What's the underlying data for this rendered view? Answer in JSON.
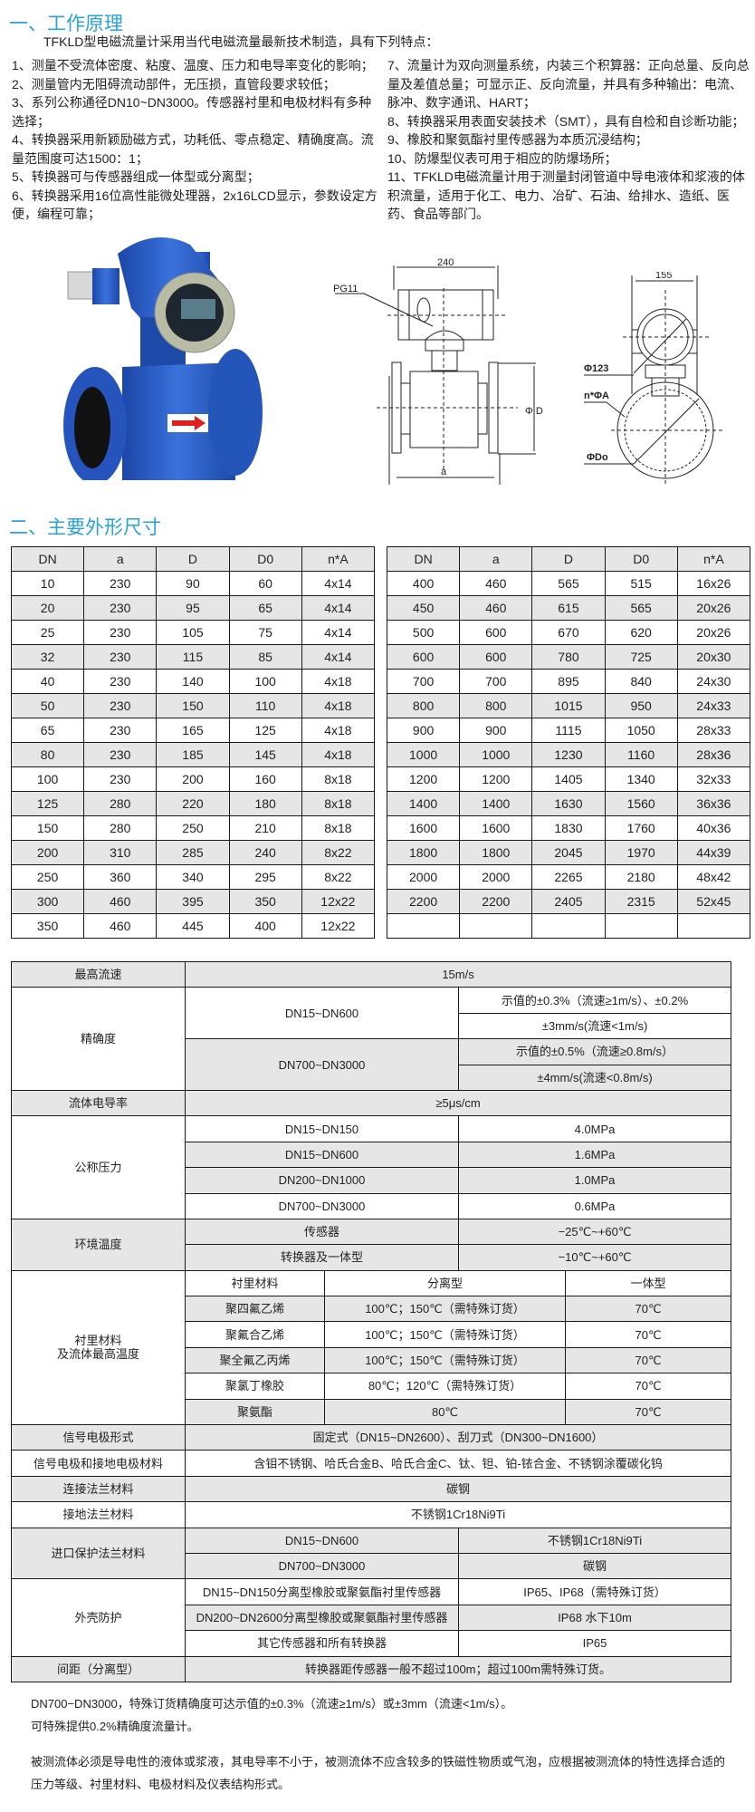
{
  "section1": {
    "title": "一、工作原理",
    "intro": "TFKLD型电磁流量计采用当代电磁流量最新技术制造，具有下列特点：",
    "left_items": [
      "1、测量不受流体密度、粘度、温度、压力和电导率变化的影响；",
      "2、测量管内无阻碍流动部件，无压损，直管段要求较低；",
      "3、系列公称通径DN10~DN3000。传感器衬里和电极材料有多种选择；",
      "4、转换器采用新颖励磁方式，功耗低、零点稳定、精确度高。流量范围度可达1500：1；",
      "5、转换器可与传感器组成一体型或分离型；",
      "6、转换器采用16位高性能微处理器，2x16LCD显示，参数设定方便，编程可靠；"
    ],
    "right_items": [
      "7、流量计为双向测量系统，内装三个积算器：正向总量、反向总量及差值总量；可显示正、反向流量，并具有多种输出：电流、脉冲、数字通讯、HART；",
      "8、转换器采用表面安装技术（SMT），具有自检和自诊断功能；",
      "9、橡胶和聚氨酯衬里传感器为本质沉浸结构；",
      "10、防爆型仪表可用于相应的防爆场所；",
      "11、TFKLD电磁流量计用于测量封闭管道中导电液体和浆液的体积流量，适用于化工、电力、冶矿、石油、给排水、造纸、医药、食品等部门。"
    ]
  },
  "drawing": {
    "dim_240": "240",
    "pg11": "PG11",
    "phi_d": "Φ D",
    "dim_a": "a",
    "dim_155": "155",
    "phi_123": "Φ123",
    "n_phi_a": "n*ΦA",
    "phi_do": "ΦDo",
    "body_color": "#2a5fc4",
    "arrow_color": "#e02020"
  },
  "section2": {
    "title": "二、主要外形尺寸",
    "headers": [
      "DN",
      "a",
      "D",
      "D0",
      "n*A"
    ],
    "left_rows": [
      [
        "10",
        "230",
        "90",
        "60",
        "4x14"
      ],
      [
        "20",
        "230",
        "95",
        "65",
        "4x14"
      ],
      [
        "25",
        "230",
        "105",
        "75",
        "4x14"
      ],
      [
        "32",
        "230",
        "115",
        "85",
        "4x14"
      ],
      [
        "40",
        "230",
        "140",
        "100",
        "4x18"
      ],
      [
        "50",
        "230",
        "150",
        "110",
        "4x18"
      ],
      [
        "65",
        "230",
        "165",
        "125",
        "4x18"
      ],
      [
        "80",
        "230",
        "185",
        "145",
        "4x18"
      ],
      [
        "100",
        "230",
        "200",
        "160",
        "8x18"
      ],
      [
        "125",
        "280",
        "220",
        "180",
        "8x18"
      ],
      [
        "150",
        "280",
        "250",
        "210",
        "8x18"
      ],
      [
        "200",
        "310",
        "285",
        "240",
        "8x22"
      ],
      [
        "250",
        "360",
        "340",
        "295",
        "8x22"
      ],
      [
        "300",
        "460",
        "395",
        "350",
        "12x22"
      ],
      [
        "350",
        "460",
        "445",
        "400",
        "12x22"
      ]
    ],
    "right_rows": [
      [
        "400",
        "460",
        "565",
        "515",
        "16x26"
      ],
      [
        "450",
        "460",
        "615",
        "565",
        "20x26"
      ],
      [
        "500",
        "600",
        "670",
        "620",
        "20x26"
      ],
      [
        "600",
        "600",
        "780",
        "725",
        "20x30"
      ],
      [
        "700",
        "700",
        "895",
        "840",
        "24x30"
      ],
      [
        "800",
        "800",
        "1015",
        "950",
        "24x33"
      ],
      [
        "900",
        "900",
        "1115",
        "1050",
        "28x33"
      ],
      [
        "1000",
        "1000",
        "1230",
        "1160",
        "28x36"
      ],
      [
        "1200",
        "1200",
        "1405",
        "1340",
        "32x33"
      ],
      [
        "1400",
        "1400",
        "1630",
        "1560",
        "36x36"
      ],
      [
        "1600",
        "1600",
        "1830",
        "1760",
        "40x36"
      ],
      [
        "1800",
        "1800",
        "2045",
        "1970",
        "44x39"
      ],
      [
        "2000",
        "2000",
        "2265",
        "2180",
        "48x42"
      ],
      [
        "2200",
        "2200",
        "2405",
        "2315",
        "52x45"
      ],
      [
        "",
        "",
        "",
        "",
        ""
      ]
    ]
  },
  "spec_table": {
    "rows": [
      [
        {
          "t": "最高流速"
        },
        {
          "t": "15m/s",
          "cs": 4
        }
      ],
      [
        {
          "t": "精确度",
          "rs": 4
        },
        {
          "t": "DN15~DN600",
          "cs": 2,
          "rs": 2
        },
        {
          "t": "示值的±0.3%（流速≥1m/s）、±0.2%",
          "cs": 2
        }
      ],
      [
        {
          "t": "±3mm/s(流速<1m/s)",
          "cs": 2
        }
      ],
      [
        {
          "t": "DN700~DN3000",
          "cs": 2,
          "rs": 2
        },
        {
          "t": "示值的±0.5%（流速≥0.8m/s）",
          "cs": 2
        }
      ],
      [
        {
          "t": "±4mm/s(流速<0.8m/s)",
          "cs": 2
        }
      ],
      [
        {
          "t": "流体电导率"
        },
        {
          "t": "≥5μs/cm",
          "cs": 4
        }
      ],
      [
        {
          "t": "公称压力",
          "rs": 4
        },
        {
          "t": "DN15~DN150",
          "cs": 2
        },
        {
          "t": "4.0MPa",
          "cs": 2
        }
      ],
      [
        {
          "t": "DN15~DN600",
          "cs": 2
        },
        {
          "t": "1.6MPa",
          "cs": 2
        }
      ],
      [
        {
          "t": "DN200~DN1000",
          "cs": 2
        },
        {
          "t": "1.0MPa",
          "cs": 2
        }
      ],
      [
        {
          "t": "DN700~DN3000",
          "cs": 2
        },
        {
          "t": "0.6MPa",
          "cs": 2
        }
      ],
      [
        {
          "t": "环境温度",
          "rs": 2
        },
        {
          "t": "传感器",
          "cs": 2
        },
        {
          "t": "−25℃~+60℃",
          "cs": 2
        }
      ],
      [
        {
          "t": "转换器及一体型",
          "cs": 2
        },
        {
          "t": "−10℃~+60℃",
          "cs": 2
        }
      ],
      [
        {
          "t": "衬里材料\n及流体最高温度",
          "rs": 6
        },
        {
          "t": "衬里材料"
        },
        {
          "t": "分离型",
          "cs": 2
        },
        {
          "t": "一体型"
        }
      ],
      [
        {
          "t": "聚四氟乙烯"
        },
        {
          "t": "100℃；150℃（需特殊订货）",
          "cs": 2
        },
        {
          "t": "70℃"
        }
      ],
      [
        {
          "t": "聚氟合乙烯"
        },
        {
          "t": "100℃；150℃（需特殊订货）",
          "cs": 2
        },
        {
          "t": "70℃"
        }
      ],
      [
        {
          "t": "聚全氟乙丙烯"
        },
        {
          "t": "100℃；150℃（需特殊订货）",
          "cs": 2
        },
        {
          "t": "70℃"
        }
      ],
      [
        {
          "t": "聚氯丁橡胶"
        },
        {
          "t": "80℃；120℃（需特殊订货）",
          "cs": 2
        },
        {
          "t": "70℃"
        }
      ],
      [
        {
          "t": "聚氨酯"
        },
        {
          "t": "80℃",
          "cs": 2
        },
        {
          "t": "70℃"
        }
      ],
      [
        {
          "t": "信号电极形式"
        },
        {
          "t": "固定式（DN15~DN2600）、刮刀式（DN300~DN1600）",
          "cs": 4
        }
      ],
      [
        {
          "t": "信号电极和接地电极材料"
        },
        {
          "t": "含钼不锈钢、哈氏合金B、哈氏合金C、钛、钽、铂-铱合金、不锈钢涂覆碳化钨",
          "cs": 4
        }
      ],
      [
        {
          "t": "连接法兰材料"
        },
        {
          "t": "碳钢",
          "cs": 4
        }
      ],
      [
        {
          "t": "接地法兰材料"
        },
        {
          "t": "不锈钢1Cr18Ni9Ti",
          "cs": 4
        }
      ],
      [
        {
          "t": "进口保护法兰材料",
          "rs": 2
        },
        {
          "t": "DN15~DN600",
          "cs": 2
        },
        {
          "t": "不锈钢1Cr18Ni9Ti",
          "cs": 2
        }
      ],
      [
        {
          "t": "DN700~DN3000",
          "cs": 2
        },
        {
          "t": "碳钢",
          "cs": 2
        }
      ],
      [
        {
          "t": "外壳防护",
          "rs": 3
        },
        {
          "t": "DN15~DN150分离型橡胶或聚氨酯衬里传感器",
          "cs": 2
        },
        {
          "t": "IP65、IP68（需特殊订货）",
          "cs": 2
        }
      ],
      [
        {
          "t": "DN200~DN2600分离型橡胶或聚氨酯衬里传感器",
          "cs": 2
        },
        {
          "t": "IP68  水下10m",
          "cs": 2
        }
      ],
      [
        {
          "t": "其它传感器和所有转换器",
          "cs": 2
        },
        {
          "t": "IP65",
          "cs": 2
        }
      ],
      [
        {
          "t": "间距（分离型）"
        },
        {
          "t": "转换器距传感器一般不超过100m；超过100m需特殊订货。",
          "cs": 4
        }
      ]
    ]
  },
  "notes": [
    "DN700−DN3000，特殊订货精确度可达示值的±0.3%（流速≥1m/s）或±3mm（流速<1m/s）。",
    "可特殊提供0.2%精确度流量计。",
    "被测流体必须是导电性的液体或浆液，其电导率不小于，被测流体不应含较多的铁磁性物质或气泡，应根据被测流体的特性选择合适的压力等级、衬里材料、电极材料及仪表结构形式。"
  ]
}
